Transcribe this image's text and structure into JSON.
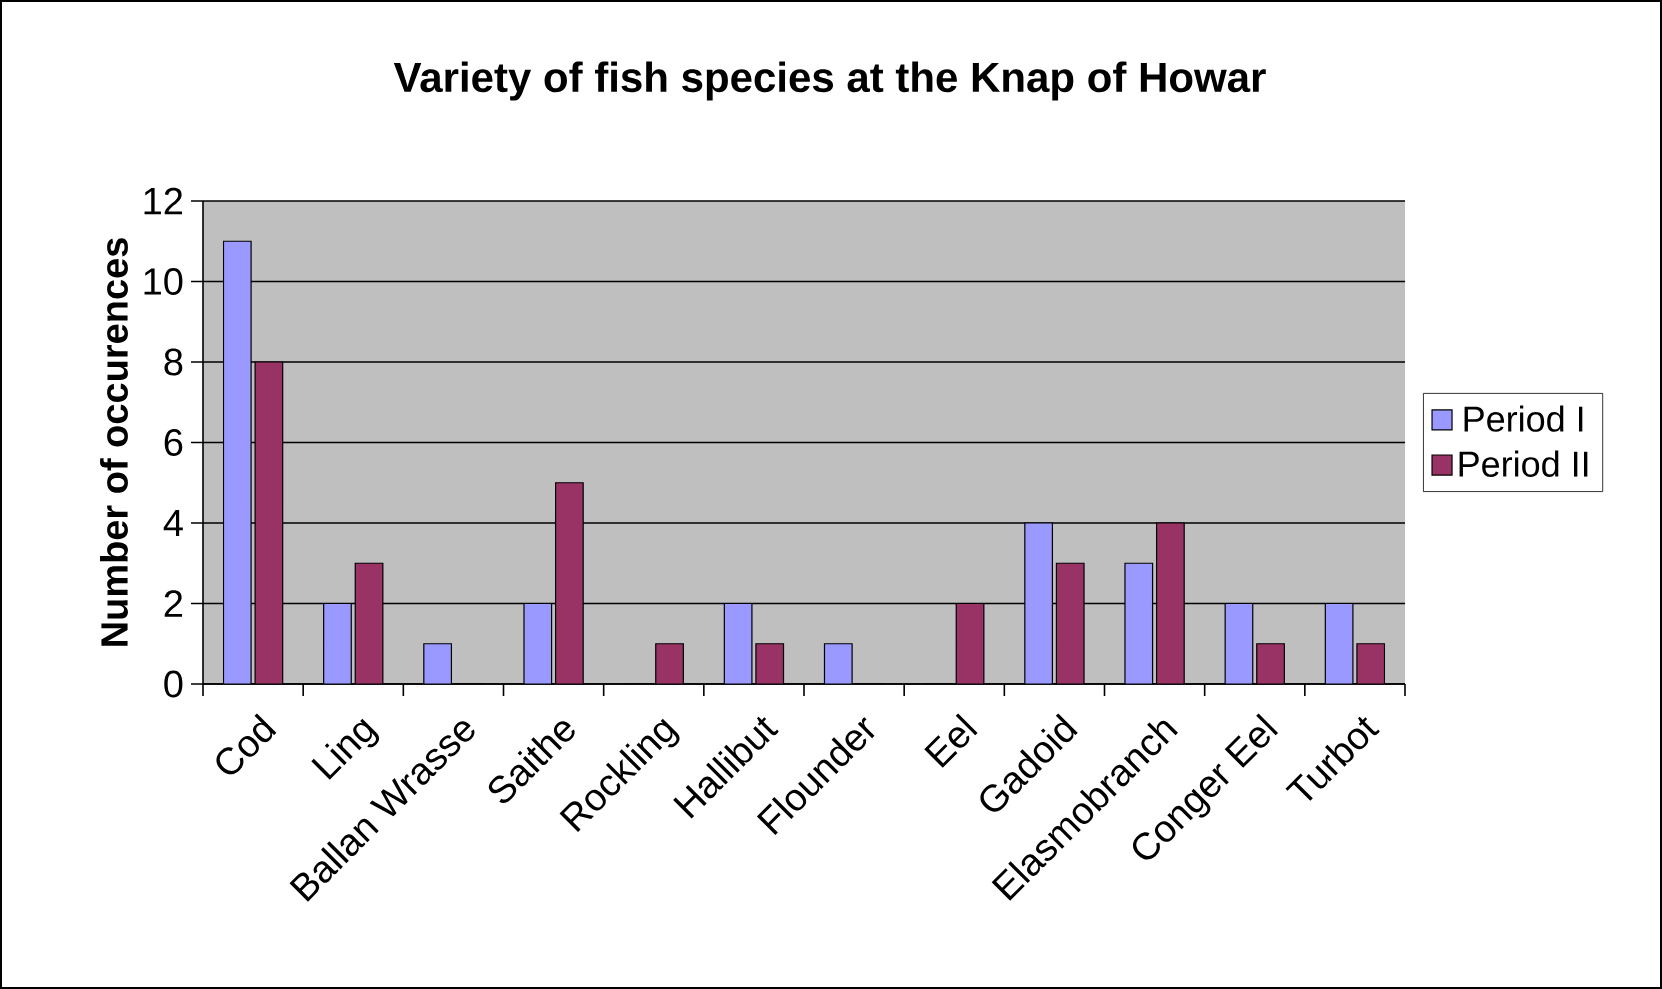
{
  "chart_data": {
    "type": "bar",
    "title": "Variety of fish species at the Knap of Howar",
    "ylabel": "Number of occurences",
    "categories": [
      "Cod",
      "Ling",
      "Ballan Wrasse",
      "Saithe",
      "Rockling",
      "Hallibut",
      "Flounder",
      "Eel",
      "Gadoid",
      "Elasmobranch",
      "Conger Eel",
      "Turbot"
    ],
    "series": [
      {
        "name": "Period I",
        "color": "#9999ff",
        "values": [
          11,
          2,
          1,
          2,
          0,
          2,
          1,
          0,
          4,
          3,
          2,
          2
        ]
      },
      {
        "name": "Period II",
        "color": "#993366",
        "values": [
          8,
          3,
          0,
          5,
          1,
          1,
          0,
          2,
          3,
          4,
          1,
          1
        ]
      }
    ],
    "ylim": [
      0,
      12
    ],
    "yticks": [
      0,
      2,
      4,
      6,
      8,
      10,
      12
    ],
    "grid": "y",
    "legend": "right"
  }
}
